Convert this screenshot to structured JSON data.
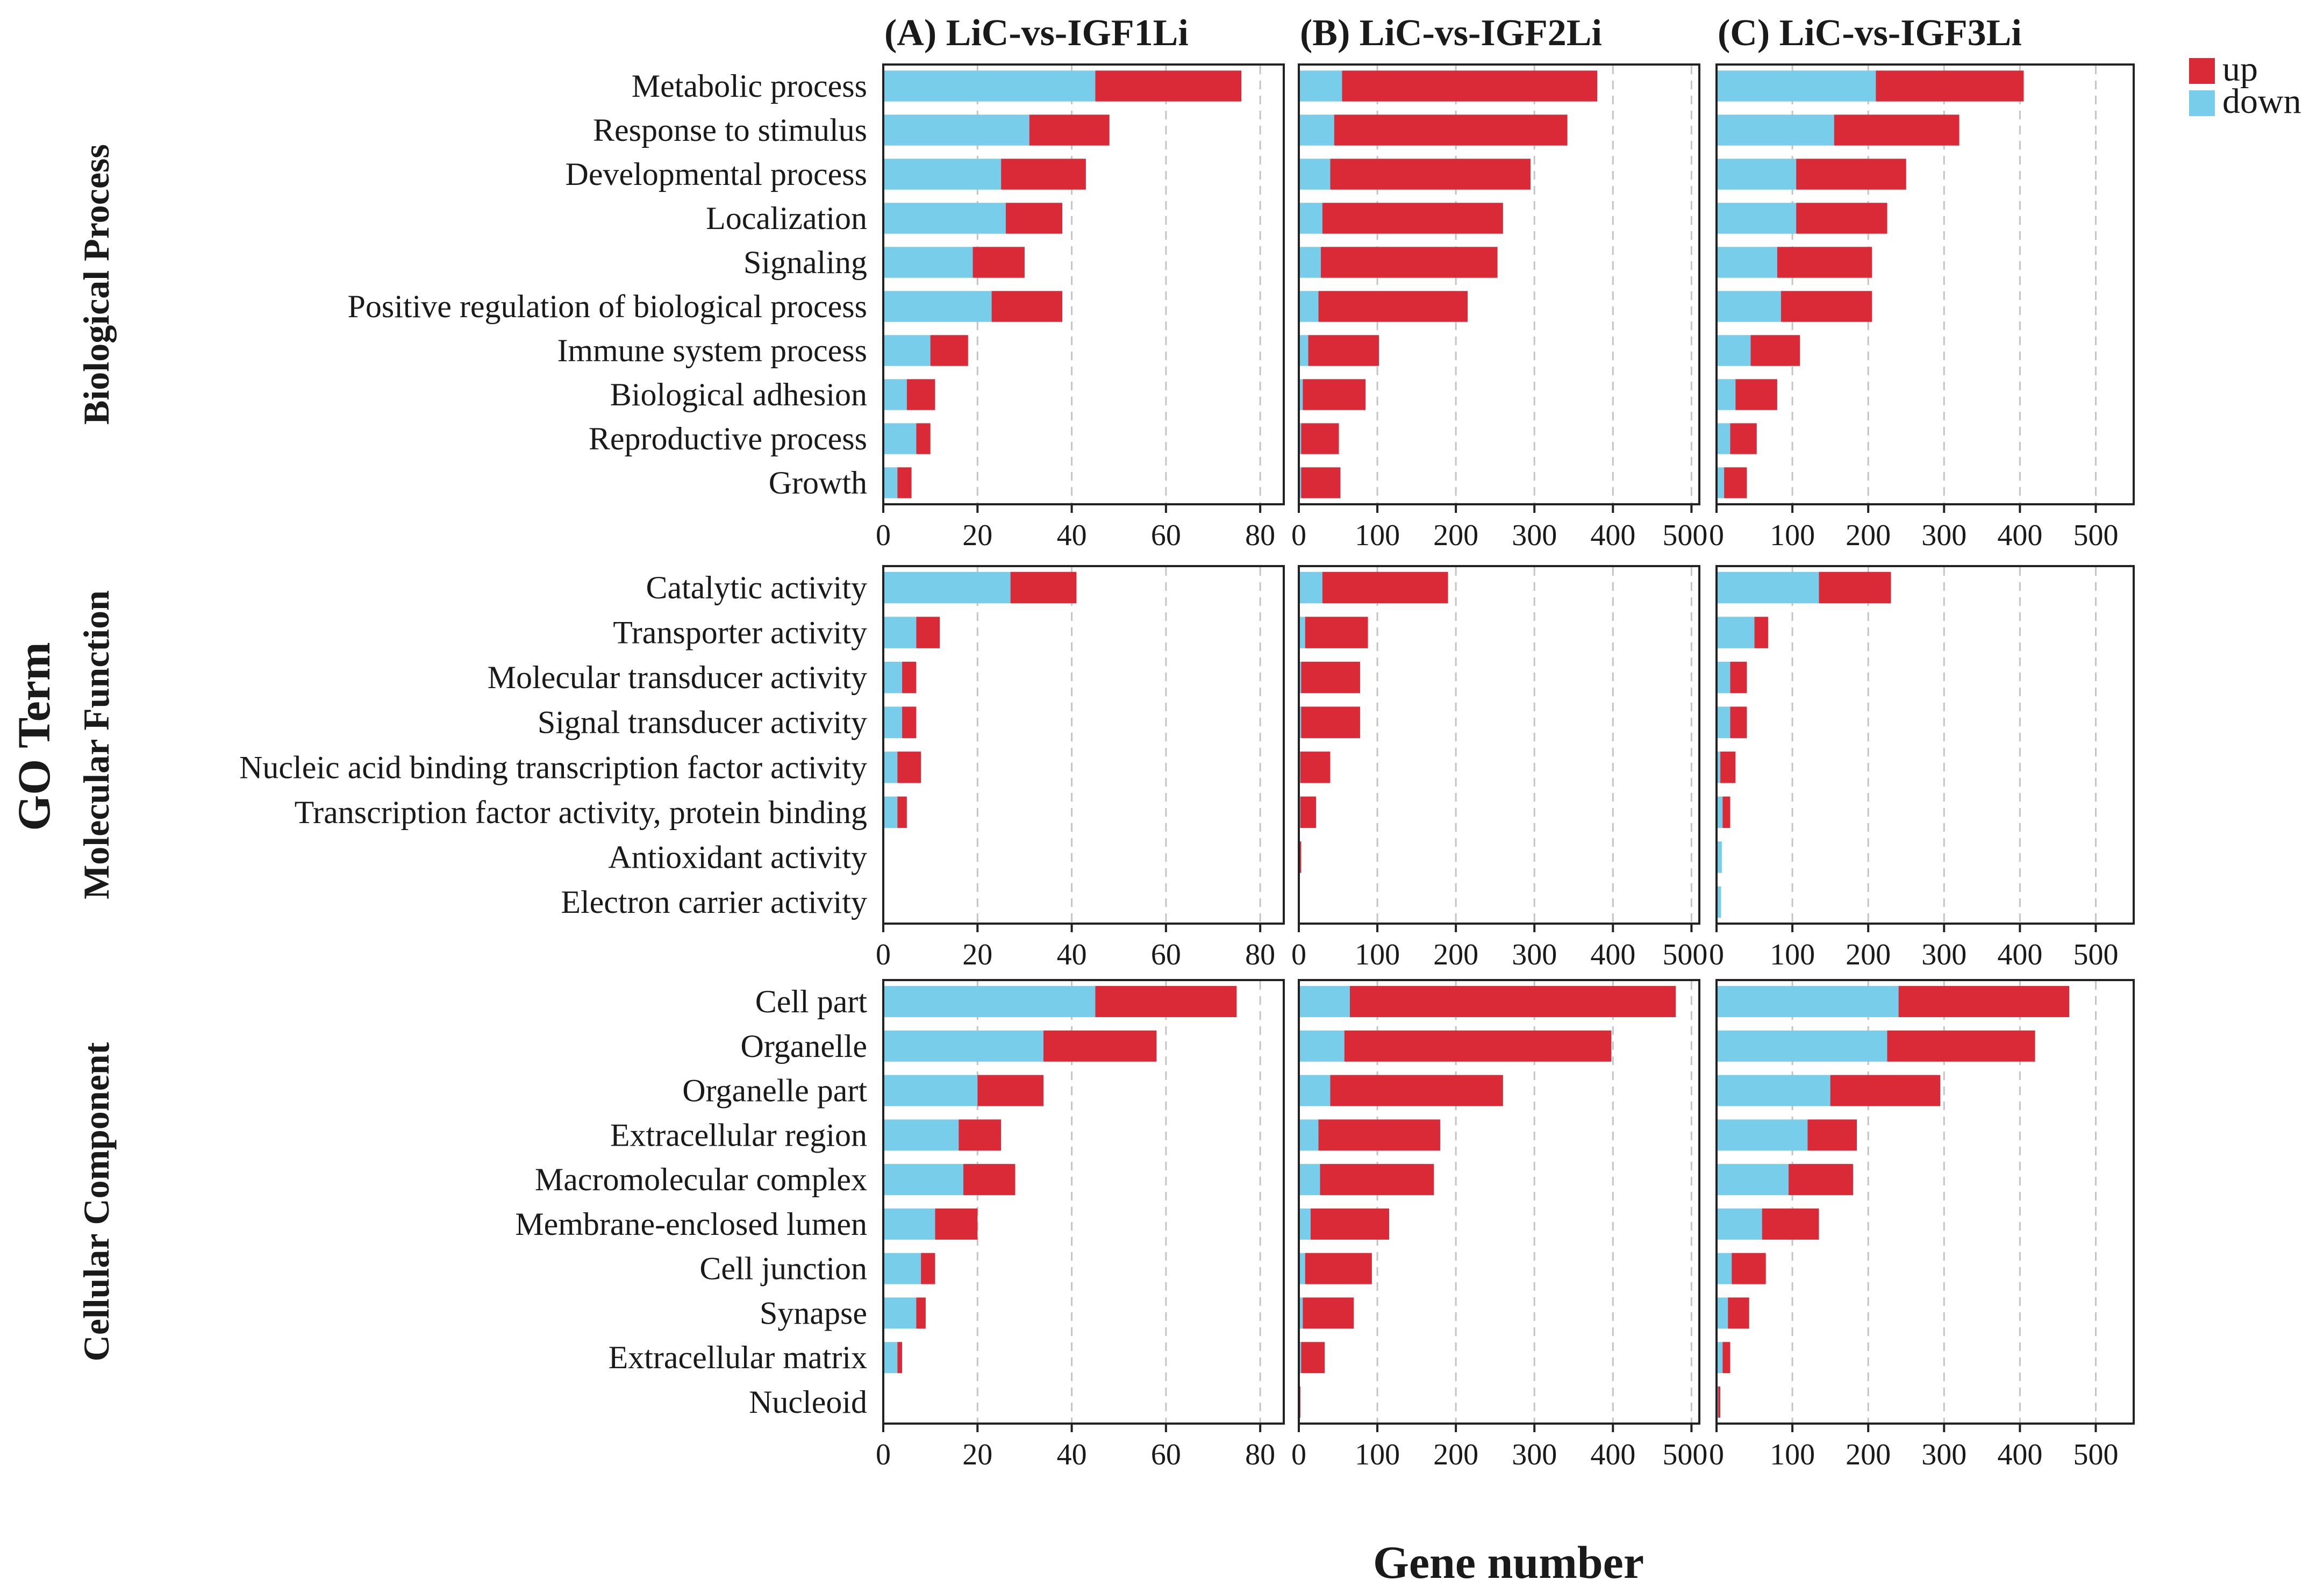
{
  "chart_data": {
    "type": "bar",
    "stacked": true,
    "orientation": "horizontal",
    "xlabel": "Gene number",
    "ylabel": "GO Term",
    "legend": {
      "position": "top-right",
      "entries": [
        {
          "name": "up",
          "color": "#DB2A37"
        },
        {
          "name": "down",
          "color": "#78CDEB"
        }
      ]
    },
    "panels": [
      {
        "key": "A",
        "label": "(A)",
        "title": "LiC-vs-IGF1Li",
        "xlim": [
          0,
          85
        ],
        "ticks": [
          0,
          20,
          40,
          60,
          80
        ]
      },
      {
        "key": "B",
        "label": "(B)",
        "title": "LiC-vs-IGF2Li",
        "xlim": [
          0,
          510
        ],
        "ticks": [
          0,
          100,
          200,
          300,
          400,
          500
        ]
      },
      {
        "key": "C",
        "label": "(C)",
        "title": "LiC-vs-IGF3Li",
        "xlim": [
          0,
          550
        ],
        "ticks": [
          0,
          100,
          200,
          300,
          400,
          500
        ]
      }
    ],
    "groups": [
      {
        "name": "Biological Process",
        "categories": [
          "Metabolic process",
          "Response to stimulus",
          "Developmental process",
          "Localization",
          "Signaling",
          "Positive regulation of biological process",
          "Immune system process",
          "Biological adhesion",
          "Reproductive process",
          "Growth"
        ],
        "series": {
          "A": {
            "down": [
              45,
              31,
              25,
              26,
              19,
              23,
              10,
              5,
              7,
              3
            ],
            "up": [
              31,
              17,
              18,
              12,
              11,
              15,
              8,
              6,
              3,
              3
            ]
          },
          "B": {
            "down": [
              55,
              45,
              40,
              30,
              28,
              25,
              12,
              5,
              3,
              3
            ],
            "up": [
              325,
              297,
              255,
              230,
              225,
              190,
              90,
              80,
              48,
              50
            ]
          },
          "C": {
            "down": [
              210,
              155,
              105,
              105,
              80,
              85,
              45,
              25,
              18,
              10
            ],
            "up": [
              195,
              165,
              145,
              120,
              125,
              120,
              65,
              55,
              35,
              30
            ]
          }
        }
      },
      {
        "name": "Molecular Function",
        "categories": [
          "Catalytic activity",
          "Transporter activity",
          "Molecular transducer activity",
          "Signal transducer activity",
          "Nucleic acid binding transcription factor activity",
          "Transcription factor activity, protein binding",
          "Antioxidant activity",
          "Electron carrier activity"
        ],
        "series": {
          "A": {
            "down": [
              27,
              7,
              4,
              4,
              3,
              3,
              0,
              0
            ],
            "up": [
              14,
              5,
              3,
              3,
              5,
              2,
              0,
              0
            ]
          },
          "B": {
            "down": [
              30,
              8,
              3,
              3,
              2,
              2,
              0,
              0
            ],
            "up": [
              160,
              80,
              75,
              75,
              38,
              20,
              3,
              1
            ]
          },
          "C": {
            "down": [
              135,
              50,
              18,
              18,
              5,
              8,
              7,
              6
            ],
            "up": [
              95,
              18,
              22,
              22,
              20,
              10,
              0,
              0
            ]
          }
        }
      },
      {
        "name": "Cellular Component",
        "categories": [
          "Cell part",
          "Organelle",
          "Organelle part",
          "Extracellular region",
          "Macromolecular complex",
          "Membrane-enclosed lumen",
          "Cell junction",
          "Synapse",
          "Extracellular matrix",
          "Nucleoid"
        ],
        "series": {
          "A": {
            "down": [
              45,
              34,
              20,
              16,
              17,
              11,
              8,
              7,
              3,
              0
            ],
            "up": [
              30,
              24,
              14,
              9,
              11,
              9,
              3,
              2,
              1,
              0
            ]
          },
          "B": {
            "down": [
              65,
              58,
              40,
              25,
              27,
              15,
              8,
              5,
              3,
              0
            ],
            "up": [
              415,
              340,
              220,
              155,
              145,
              100,
              85,
              65,
              30,
              2
            ]
          },
          "C": {
            "down": [
              240,
              225,
              150,
              120,
              95,
              60,
              20,
              15,
              8,
              2
            ],
            "up": [
              225,
              195,
              145,
              65,
              85,
              75,
              45,
              28,
              10,
              3
            ]
          }
        }
      }
    ]
  }
}
